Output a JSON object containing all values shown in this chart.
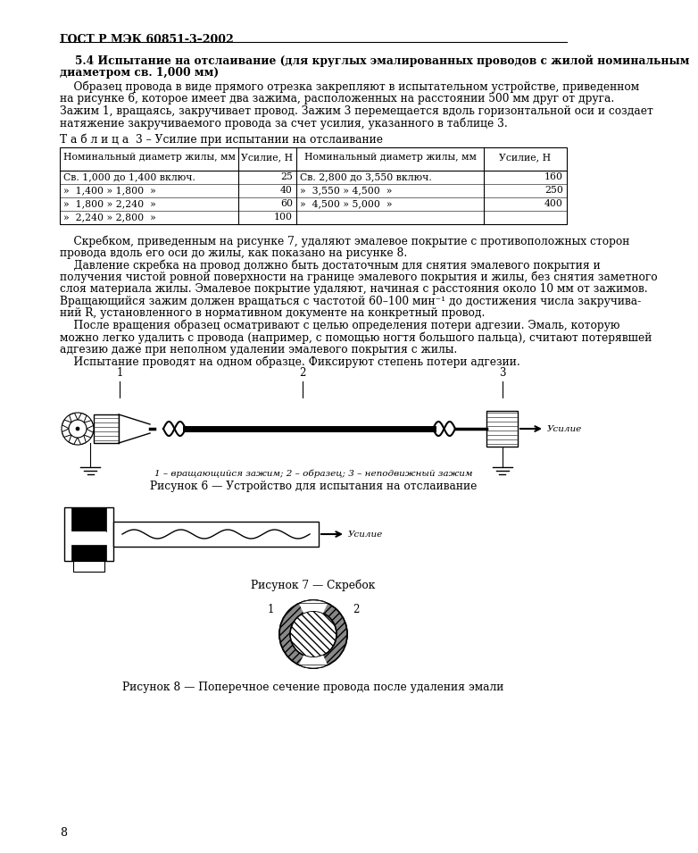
{
  "page_header": "ГОСТ Р МЭК 60851-3–2002",
  "section_bold": "5.4 Испытание на отслаивание (для круглых эмалированных проводов с жилой номинальным\nдиаметром св. 1,000 мм)",
  "p1_lines": [
    "    Образец провода в виде прямого отрезка закрепляют в испытательном устройстве, приведенном",
    "на рисунке 6, которое имеет два зажима, расположенных на расстоянии 500 мм друг от друга.",
    "Зажим 1, вращаясь, закручивает провод. Зажим 3 перемещается вдоль горизонтальной оси и создает",
    "натяжение закручиваемого провода за счет усилия, указанного в таблице 3."
  ],
  "table_title": "Т а б л и ц а  3 – Усилие при испытании на отслаивание",
  "table_header": [
    "Номинальный диаметр жилы, мм",
    "Усилие, Н",
    "Номинальный диаметр жилы, мм",
    "Усилие, Н"
  ],
  "table_rows_left": [
    [
      "Св. 1,000 до 1,400 включ.",
      "25"
    ],
    [
      "»  1,400 » 1,800  »",
      "40"
    ],
    [
      "»  1,800 » 2,240  »",
      "60"
    ],
    [
      "»  2,240 » 2,800  »",
      "100"
    ]
  ],
  "table_rows_right": [
    [
      "Св. 2,800 до 3,550 включ.",
      "160"
    ],
    [
      "»  3,550 » 4,500  »",
      "250"
    ],
    [
      "»  4,500 » 5,000  »",
      "400"
    ],
    [
      "",
      ""
    ]
  ],
  "p2_lines": [
    "    Скребком, приведенным на рисунке 7, удаляют эмалевое покрытие с противоположных сторон",
    "провода вдоль его оси до жилы, как показано на рисунке 8.",
    "    Давление скребка на провод должно быть достаточным для снятия эмалевого покрытия и",
    "получения чистой ровной поверхности на границе эмалевого покрытия и жилы, без снятия заметного",
    "слоя материала жилы. Эмалевое покрытие удаляют, начиная с расстояния около 10 мм от зажимов.",
    "Вращающийся зажим должен вращаться с частотой 60–100 мин⁻¹ до достижения числа закручива-",
    "ний R, установленного в нормативном документе на конкретный провод.",
    "    После вращения образец осматривают с целью определения потери адгезии. Эмаль, которую",
    "можно легко удалить с провода (например, с помощью ногтя большого пальца), считают потерявшей",
    "адгезию даже при неполном удалении эмалевого покрытия с жилы.",
    "    Испытание проводят на одном образце. Фиксируют степень потери адгезии."
  ],
  "fig6_caption": "Рисунок 6 — Устройство для испытания на отслаивание",
  "fig6_labels": "1 – вращающийся зажим; 2 – образец; 3 – неподвижный зажим",
  "fig7_caption": "Рисунок 7 — Скребок",
  "fig8_caption": "Рисунок 8 — Поперечное сечение провода после удаления эмали",
  "page_number": "8"
}
